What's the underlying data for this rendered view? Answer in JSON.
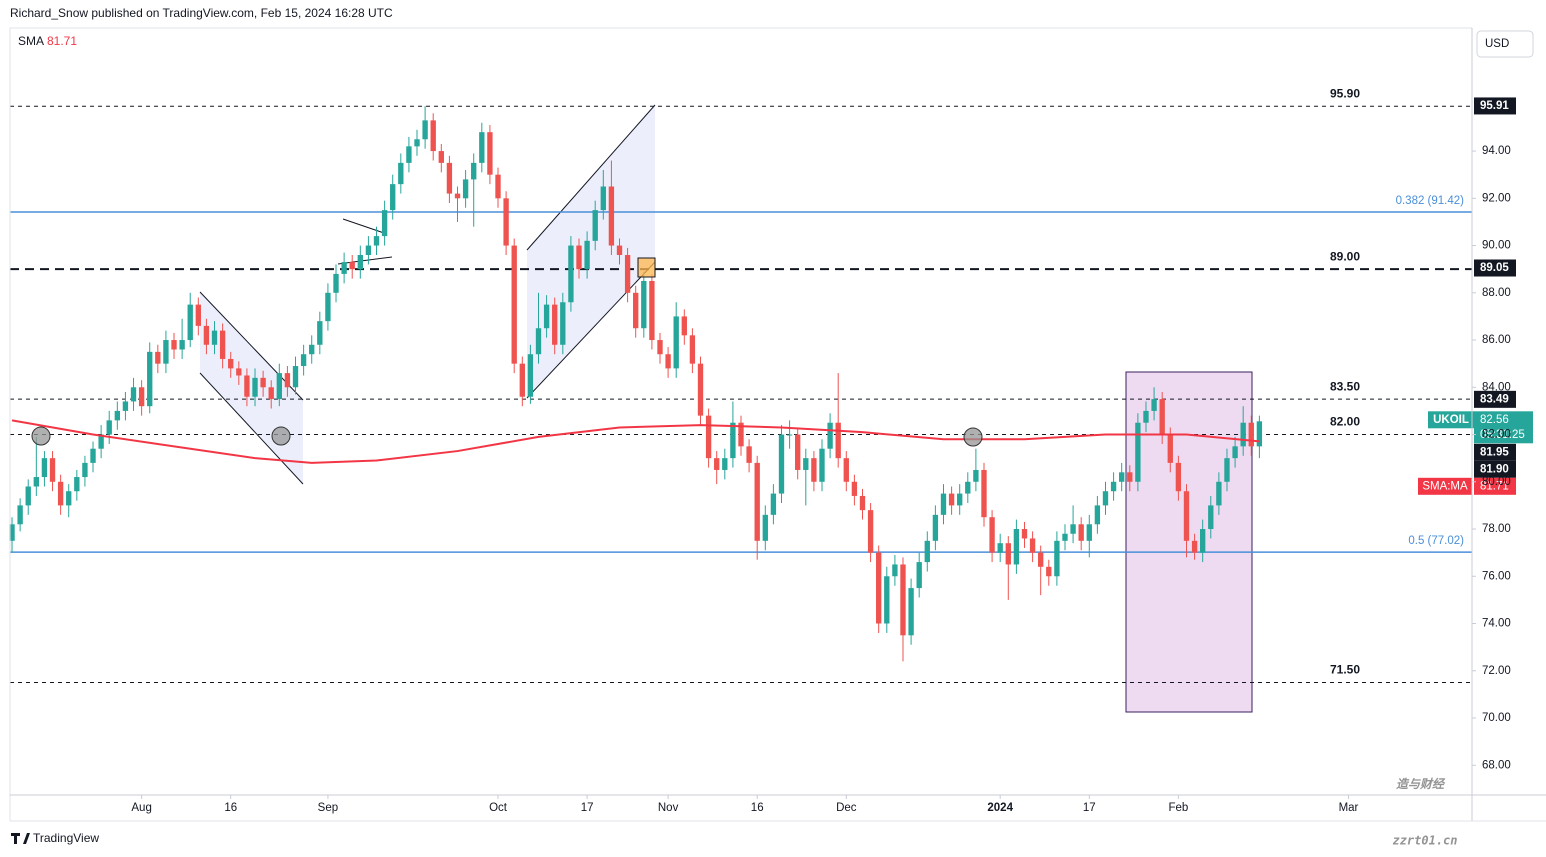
{
  "publisher_line": "Richard_Snow published on TradingView.com, Feb 15, 2024 16:28 UTC",
  "currency": "USD",
  "brand": "TradingView",
  "watermark": [
    "造与财经",
    "zzrt01.cn"
  ],
  "chart_data": {
    "type": "candlestick",
    "up_color": "#26a69a",
    "down_color": "#ef5350",
    "ylim": [
      66.74,
      99.21
    ],
    "yticks": [
      {
        "value": 68,
        "label": "68.00"
      },
      {
        "value": 70,
        "label": "70.00"
      },
      {
        "value": 72,
        "label": "72.00"
      },
      {
        "value": 74,
        "label": "74.00"
      },
      {
        "value": 76,
        "label": "76.00"
      },
      {
        "value": 78,
        "label": "78.00"
      },
      {
        "value": 80,
        "label": "80.00"
      },
      {
        "value": 82,
        "label": "82.00"
      },
      {
        "value": 84,
        "label": "84.00"
      },
      {
        "value": 86,
        "label": "86.00"
      },
      {
        "value": 88,
        "label": "88.00"
      },
      {
        "value": 90,
        "label": "90.00"
      },
      {
        "value": 92,
        "label": "92.00"
      },
      {
        "value": 94,
        "label": "94.00"
      }
    ],
    "xlim": [
      -0.25,
      180.25
    ],
    "xticks": [
      {
        "value": 16,
        "label": "Aug"
      },
      {
        "value": 27,
        "label": "16"
      },
      {
        "value": 39,
        "label": "Sep"
      },
      {
        "value": 60,
        "label": "Oct"
      },
      {
        "value": 71,
        "label": "17"
      },
      {
        "value": 81,
        "label": "Nov"
      },
      {
        "value": 92,
        "label": "16"
      },
      {
        "value": 103,
        "label": "Dec"
      },
      {
        "value": 122,
        "label": "2024"
      },
      {
        "value": 133,
        "label": "17"
      },
      {
        "value": 144,
        "label": "Feb"
      },
      {
        "value": 165,
        "label": "Mar"
      }
    ],
    "candles": [
      [
        77.5,
        78.5,
        77.0,
        78.2
      ],
      [
        78.2,
        79.3,
        77.9,
        79.0
      ],
      [
        79.0,
        80.1,
        78.6,
        79.8
      ],
      [
        79.8,
        81.9,
        79.4,
        80.2
      ],
      [
        80.2,
        81.3,
        79.8,
        81.0
      ],
      [
        81.0,
        81.3,
        79.6,
        80.0
      ],
      [
        80.0,
        80.3,
        78.6,
        79.0
      ],
      [
        79.0,
        79.9,
        78.5,
        79.6
      ],
      [
        79.6,
        80.5,
        79.2,
        80.2
      ],
      [
        80.2,
        81.1,
        79.8,
        80.8
      ],
      [
        80.8,
        81.7,
        80.4,
        81.4
      ],
      [
        81.4,
        82.4,
        81.0,
        82.0
      ],
      [
        82.0,
        83.0,
        81.6,
        82.6
      ],
      [
        82.6,
        83.4,
        82.2,
        83.0
      ],
      [
        83.0,
        83.8,
        82.6,
        83.4
      ],
      [
        83.4,
        84.4,
        83.0,
        84.0
      ],
      [
        84.0,
        84.3,
        82.8,
        83.2
      ],
      [
        83.2,
        85.9,
        82.9,
        85.5
      ],
      [
        85.5,
        85.8,
        84.6,
        85.0
      ],
      [
        85.0,
        86.4,
        84.6,
        86.0
      ],
      [
        86.0,
        86.3,
        85.2,
        85.6
      ],
      [
        85.6,
        86.9,
        85.2,
        86.0
      ],
      [
        86.0,
        88.0,
        85.7,
        87.5
      ],
      [
        87.5,
        87.8,
        86.2,
        86.6
      ],
      [
        86.6,
        86.9,
        85.4,
        85.8
      ],
      [
        85.8,
        86.8,
        85.4,
        86.4
      ],
      [
        86.4,
        86.7,
        84.8,
        85.2
      ],
      [
        85.2,
        85.5,
        84.4,
        84.8
      ],
      [
        84.8,
        85.1,
        84.1,
        84.5
      ],
      [
        84.5,
        84.8,
        83.2,
        83.6
      ],
      [
        83.6,
        84.8,
        83.2,
        84.4
      ],
      [
        84.4,
        84.7,
        83.6,
        84.0
      ],
      [
        84.0,
        84.3,
        83.1,
        83.5
      ],
      [
        83.5,
        85.0,
        83.2,
        84.6
      ],
      [
        84.6,
        84.9,
        83.6,
        84.0
      ],
      [
        84.0,
        85.3,
        83.7,
        84.9
      ],
      [
        84.9,
        85.8,
        84.5,
        85.4
      ],
      [
        85.4,
        86.2,
        85.0,
        85.8
      ],
      [
        85.8,
        87.2,
        85.4,
        86.8
      ],
      [
        86.8,
        88.4,
        86.4,
        88.0
      ],
      [
        88.0,
        89.2,
        87.6,
        88.8
      ],
      [
        88.8,
        89.7,
        88.4,
        89.3
      ],
      [
        89.3,
        89.6,
        88.6,
        89.0
      ],
      [
        89.0,
        90.0,
        88.6,
        89.6
      ],
      [
        89.6,
        90.4,
        89.2,
        90.0
      ],
      [
        90.0,
        90.8,
        89.6,
        90.4
      ],
      [
        90.4,
        91.9,
        90.0,
        91.5
      ],
      [
        91.5,
        93.0,
        91.1,
        92.6
      ],
      [
        92.6,
        93.9,
        92.2,
        93.5
      ],
      [
        93.5,
        94.6,
        93.1,
        94.2
      ],
      [
        94.2,
        94.9,
        93.8,
        94.5
      ],
      [
        94.5,
        95.9,
        94.1,
        95.3
      ],
      [
        95.3,
        95.6,
        93.6,
        94.0
      ],
      [
        94.0,
        94.3,
        93.1,
        93.5
      ],
      [
        93.5,
        93.8,
        91.8,
        92.2
      ],
      [
        92.2,
        92.5,
        91.0,
        92.0
      ],
      [
        92.0,
        93.2,
        91.6,
        92.8
      ],
      [
        92.8,
        93.9,
        90.8,
        93.5
      ],
      [
        93.5,
        95.2,
        93.1,
        94.8
      ],
      [
        94.8,
        95.1,
        92.6,
        93.0
      ],
      [
        93.0,
        93.3,
        91.6,
        92.0
      ],
      [
        92.0,
        92.3,
        89.6,
        90.0
      ],
      [
        90.0,
        90.3,
        84.6,
        85.0
      ],
      [
        85.0,
        85.3,
        83.2,
        83.6
      ],
      [
        83.6,
        85.8,
        83.3,
        85.4
      ],
      [
        85.4,
        88.0,
        85.0,
        86.5
      ],
      [
        86.5,
        87.9,
        86.1,
        87.5
      ],
      [
        87.5,
        87.8,
        85.4,
        85.8
      ],
      [
        85.8,
        88.0,
        85.4,
        87.6
      ],
      [
        87.6,
        90.4,
        87.2,
        90.0
      ],
      [
        90.0,
        90.3,
        88.6,
        89.0
      ],
      [
        89.0,
        90.6,
        88.6,
        90.2
      ],
      [
        90.2,
        91.9,
        89.8,
        91.5
      ],
      [
        91.5,
        93.2,
        91.1,
        92.5
      ],
      [
        92.5,
        93.6,
        89.6,
        90.0
      ],
      [
        90.0,
        90.3,
        89.2,
        89.6
      ],
      [
        89.6,
        89.9,
        87.6,
        88.0
      ],
      [
        88.0,
        88.3,
        86.1,
        86.5
      ],
      [
        86.5,
        88.9,
        86.1,
        88.5
      ],
      [
        88.5,
        88.8,
        85.6,
        86.0
      ],
      [
        86.0,
        86.3,
        85.0,
        85.4
      ],
      [
        85.4,
        85.7,
        84.4,
        84.8
      ],
      [
        84.8,
        87.6,
        84.4,
        87.0
      ],
      [
        87.0,
        87.3,
        85.8,
        86.2
      ],
      [
        86.2,
        86.5,
        84.6,
        85.0
      ],
      [
        85.0,
        85.3,
        82.4,
        82.8
      ],
      [
        82.8,
        83.1,
        80.6,
        81.0
      ],
      [
        81.0,
        81.3,
        79.9,
        80.5
      ],
      [
        80.5,
        81.4,
        80.1,
        81.0
      ],
      [
        81.0,
        83.4,
        80.6,
        82.5
      ],
      [
        82.5,
        82.8,
        81.1,
        81.5
      ],
      [
        81.5,
        81.8,
        80.4,
        80.8
      ],
      [
        80.8,
        81.1,
        76.7,
        77.5
      ],
      [
        77.5,
        79.0,
        77.1,
        78.6
      ],
      [
        78.6,
        79.9,
        78.2,
        79.5
      ],
      [
        79.5,
        82.4,
        79.1,
        82.0
      ],
      [
        82.0,
        82.6,
        81.4,
        82.0
      ],
      [
        82.0,
        82.3,
        80.1,
        80.5
      ],
      [
        80.5,
        81.4,
        79.0,
        81.0
      ],
      [
        81.0,
        81.3,
        79.6,
        80.0
      ],
      [
        80.0,
        81.8,
        79.6,
        81.4
      ],
      [
        81.4,
        82.9,
        81.0,
        82.5
      ],
      [
        82.5,
        84.6,
        80.6,
        81.0
      ],
      [
        81.0,
        81.3,
        79.6,
        80.0
      ],
      [
        80.0,
        80.3,
        79.0,
        79.4
      ],
      [
        79.4,
        79.7,
        78.4,
        78.8
      ],
      [
        78.8,
        79.1,
        76.6,
        77.0
      ],
      [
        77.0,
        77.3,
        73.6,
        74.0
      ],
      [
        74.0,
        76.4,
        73.6,
        76.0
      ],
      [
        76.0,
        76.9,
        75.6,
        76.5
      ],
      [
        76.5,
        76.8,
        72.4,
        73.5
      ],
      [
        73.5,
        75.9,
        73.1,
        75.5
      ],
      [
        75.5,
        77.0,
        75.1,
        76.6
      ],
      [
        76.6,
        77.9,
        76.2,
        77.5
      ],
      [
        77.5,
        79.0,
        77.1,
        78.6
      ],
      [
        78.6,
        79.9,
        78.2,
        79.5
      ],
      [
        79.5,
        79.8,
        78.6,
        79.0
      ],
      [
        79.0,
        79.9,
        78.6,
        79.5
      ],
      [
        79.5,
        80.4,
        79.1,
        80.0
      ],
      [
        80.0,
        81.4,
        79.6,
        80.5
      ],
      [
        80.5,
        80.8,
        78.1,
        78.5
      ],
      [
        78.5,
        78.8,
        76.6,
        77.0
      ],
      [
        77.0,
        77.8,
        76.6,
        77.4
      ],
      [
        77.4,
        77.7,
        75.0,
        76.5
      ],
      [
        76.5,
        78.4,
        76.1,
        78.0
      ],
      [
        78.0,
        78.3,
        77.2,
        77.6
      ],
      [
        77.6,
        77.9,
        76.6,
        77.0
      ],
      [
        77.0,
        77.3,
        75.2,
        76.4
      ],
      [
        76.4,
        76.7,
        75.6,
        76.0
      ],
      [
        76.0,
        77.9,
        75.6,
        77.5
      ],
      [
        77.5,
        78.2,
        77.1,
        77.8
      ],
      [
        77.8,
        79.0,
        77.4,
        78.2
      ],
      [
        78.2,
        78.5,
        77.1,
        77.5
      ],
      [
        77.5,
        78.6,
        76.8,
        78.2
      ],
      [
        78.2,
        79.4,
        77.8,
        79.0
      ],
      [
        79.0,
        80.0,
        78.6,
        79.6
      ],
      [
        79.6,
        80.4,
        79.2,
        80.0
      ],
      [
        80.0,
        80.8,
        79.6,
        80.4
      ],
      [
        80.4,
        80.7,
        79.6,
        80.0
      ],
      [
        80.0,
        82.9,
        79.6,
        82.5
      ],
      [
        82.5,
        83.4,
        82.1,
        83.0
      ],
      [
        83.0,
        84.0,
        82.6,
        83.5
      ],
      [
        83.5,
        83.8,
        81.6,
        82.0
      ],
      [
        82.0,
        82.3,
        80.4,
        80.8
      ],
      [
        80.8,
        81.1,
        79.2,
        79.6
      ],
      [
        79.6,
        79.9,
        76.8,
        77.5
      ],
      [
        77.5,
        77.8,
        76.7,
        77.0
      ],
      [
        77.0,
        78.4,
        76.6,
        78.0
      ],
      [
        78.0,
        79.4,
        77.6,
        79.0
      ],
      [
        79.0,
        80.4,
        78.6,
        80.0
      ],
      [
        80.0,
        81.4,
        79.6,
        81.0
      ],
      [
        81.0,
        81.9,
        80.6,
        81.5
      ],
      [
        81.5,
        83.2,
        81.1,
        82.5
      ],
      [
        82.5,
        82.8,
        81.1,
        81.5
      ],
      [
        81.5,
        82.8,
        81.0,
        82.56
      ]
    ],
    "sma": {
      "name": "SMA",
      "value": 81.71,
      "color": "#f23645",
      "x": [
        0,
        10,
        20,
        30,
        37,
        45,
        55,
        65,
        75,
        85,
        95,
        105,
        115,
        125,
        135,
        145,
        154
      ],
      "values": [
        82.6,
        82.0,
        81.5,
        81.0,
        80.8,
        80.9,
        81.3,
        81.9,
        82.3,
        82.4,
        82.3,
        82.1,
        81.8,
        81.8,
        82.0,
        82.0,
        81.71
      ]
    },
    "levels": [
      {
        "value": 95.9,
        "label": "95.90",
        "style": "dashed",
        "color": "#131722"
      },
      {
        "value": 91.42,
        "label": "0.382 (91.42)",
        "style": "fib",
        "color": "#4a8fd9"
      },
      {
        "value": 89,
        "label": "89.00",
        "style": "bold-dashed",
        "color": "#131722"
      },
      {
        "value": 83.5,
        "label": "83.50",
        "style": "dashed",
        "color": "#131722"
      },
      {
        "value": 82,
        "label": "82.00",
        "style": "dashed",
        "color": "#131722"
      },
      {
        "value": 77.02,
        "label": "0.5 (77.02)",
        "style": "fib",
        "color": "#4a8fd9"
      },
      {
        "value": 71.5,
        "label": "71.50",
        "style": "dashed",
        "color": "#131722"
      }
    ],
    "price_labels": [
      {
        "value": 95.91,
        "color": "#131722"
      },
      {
        "value": 89.05,
        "color": "#131722"
      },
      {
        "value": 83.49,
        "color": "#131722"
      },
      {
        "name": "UKOIL",
        "value": 82.56,
        "countdown": "05:31:25",
        "color": "#26a69a"
      },
      {
        "value": 81.95,
        "color": "#131722"
      },
      {
        "value": 81.9,
        "label": "81.90",
        "color": "#131722"
      },
      {
        "name": "SMA:MA",
        "value": 81.71,
        "color": "#f23645"
      }
    ]
  }
}
